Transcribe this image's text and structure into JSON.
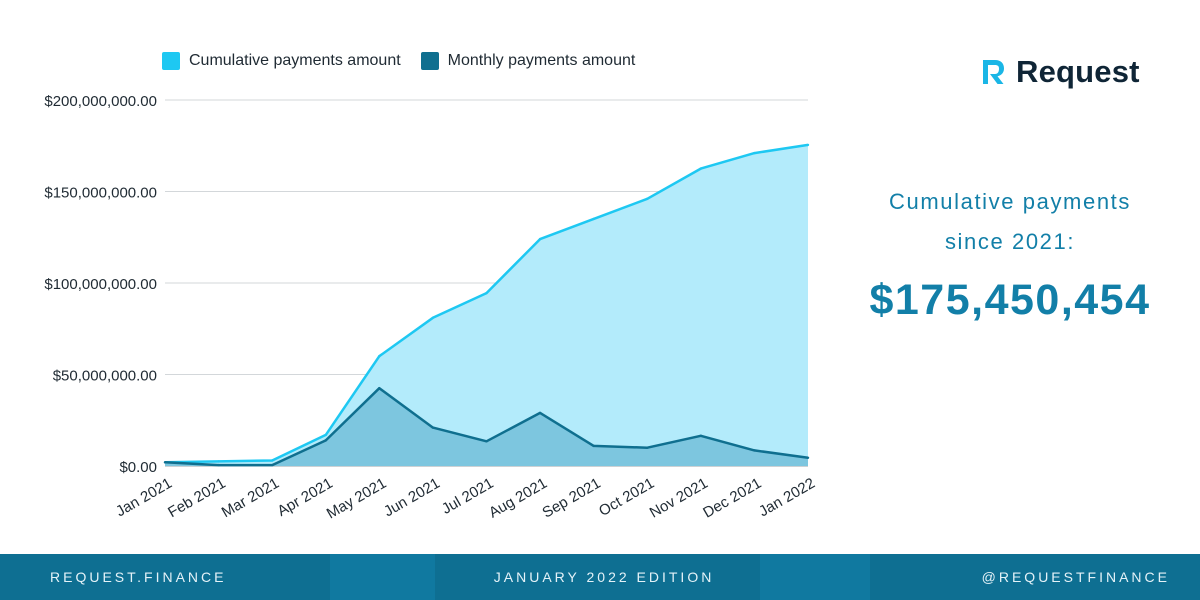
{
  "legend": {
    "cumulative": "Cumulative payments amount",
    "monthly": "Monthly payments amount"
  },
  "brand": {
    "name": "Request",
    "icon": "request-logo-icon"
  },
  "summary": {
    "line1": "Cumulative payments",
    "line2": "since 2021:",
    "amount": "$175,450,454"
  },
  "footer": {
    "left": "REQUEST.FINANCE",
    "center": "JANUARY 2022 EDITION",
    "right": "@REQUESTFINANCE"
  },
  "colors": {
    "cumulative_line": "#1ec8f2",
    "cumulative_fill": "#b3ebfb",
    "monthly_line": "#0f6f8f",
    "monthly_fill": "#7dc6df",
    "accent_text": "#127fa8",
    "footer_bg": "#0e6f92"
  },
  "chart_data": {
    "type": "area",
    "categories": [
      "Jan 2021",
      "Feb 2021",
      "Mar 2021",
      "Apr 2021",
      "May 2021",
      "Jun 2021",
      "Jul 2021",
      "Aug 2021",
      "Sep 2021",
      "Oct 2021",
      "Nov 2021",
      "Dec 2021",
      "Jan 2022"
    ],
    "series": [
      {
        "name": "Cumulative payments amount",
        "values": [
          2000000,
          2500000,
          3000000,
          17000000,
          60000000,
          81000000,
          94500000,
          124000000,
          135000000,
          146000000,
          162500000,
          171000000,
          175450454
        ]
      },
      {
        "name": "Monthly payments amount",
        "values": [
          2000000,
          500000,
          500000,
          14000000,
          42500000,
          21000000,
          13500000,
          29000000,
          11000000,
          10000000,
          16500000,
          8500000,
          4500000
        ]
      }
    ],
    "yticks": [
      "$0.00",
      "$50,000,000.00",
      "$100,000,000.00",
      "$150,000,000.00",
      "$200,000,000.00"
    ],
    "ytick_values": [
      0,
      50000000,
      100000000,
      150000000,
      200000000
    ],
    "ylim": [
      0,
      200000000
    ],
    "grid": true,
    "legend_position": "top"
  }
}
